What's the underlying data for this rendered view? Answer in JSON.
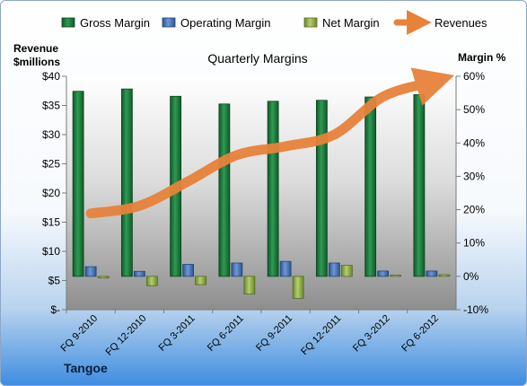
{
  "chart_data": {
    "type": "bar",
    "title": "Quarterly Margins",
    "company": "Tangoe",
    "left_axis": {
      "label_line1": "Revenue",
      "label_line2": "$millions",
      "min": 0,
      "max": 40,
      "ticks": [
        0,
        5,
        10,
        15,
        20,
        25,
        30,
        35,
        40
      ],
      "tick_labels": [
        "$-",
        "$5",
        "$10",
        "$15",
        "$20",
        "$25",
        "$30",
        "$35",
        "$40"
      ]
    },
    "right_axis": {
      "label": "Margin %",
      "min": -10,
      "max": 60,
      "ticks": [
        -10,
        0,
        10,
        20,
        30,
        40,
        50,
        60
      ],
      "tick_labels": [
        "-10%",
        "0%",
        "10%",
        "20%",
        "30%",
        "40%",
        "50%",
        "60%"
      ]
    },
    "categories": [
      "FQ 9-2010",
      "FQ 12-2010",
      "FQ 3-2011",
      "FQ 6-2011",
      "FQ 9-2011",
      "FQ 12-2011",
      "FQ 3-2012",
      "FQ 6-2012"
    ],
    "series": [
      {
        "name": "Gross Margin",
        "axis": "right",
        "kind": "bar",
        "color": "#1e7a3c",
        "values": [
          55.5,
          56.2,
          54.0,
          51.7,
          52.5,
          52.8,
          53.8,
          54.5
        ]
      },
      {
        "name": "Operating Margin",
        "axis": "right",
        "kind": "bar",
        "color": "#3d6fb5",
        "values": [
          2.9,
          1.5,
          3.6,
          4.0,
          4.5,
          4.0,
          1.6,
          1.6
        ]
      },
      {
        "name": "Net Margin",
        "axis": "right",
        "kind": "bar",
        "color": "#8fae48",
        "values": [
          -0.5,
          -2.8,
          -2.5,
          -5.3,
          -6.6,
          3.3,
          0.4,
          0.5
        ]
      },
      {
        "name": "Revenues",
        "axis": "left",
        "kind": "line",
        "color": "#e8823a",
        "values": [
          16.5,
          17.8,
          22.0,
          26.5,
          28.0,
          30.0,
          36.5,
          39.0
        ]
      }
    ],
    "grid": false,
    "legend": "top"
  }
}
